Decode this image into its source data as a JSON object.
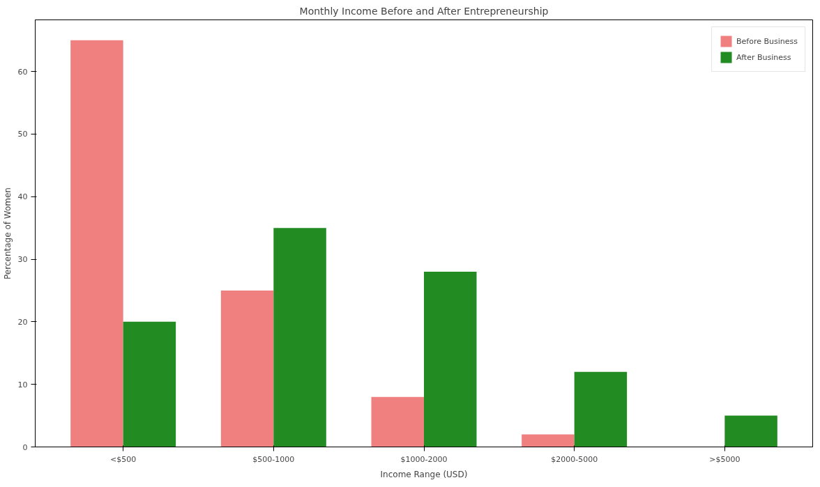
{
  "chart_data": {
    "type": "bar",
    "title": "Monthly Income Before and After Entrepreneurship",
    "xlabel": "Income Range (USD)",
    "ylabel": "Percentage of Women",
    "categories": [
      "<$500",
      "$500-1000",
      "$1000-2000",
      "$2000-5000",
      ">$5000"
    ],
    "series": [
      {
        "name": "Before Business",
        "color": "#f08080",
        "values": [
          65,
          25,
          8,
          2,
          0
        ]
      },
      {
        "name": "After Business",
        "color": "#228b22",
        "values": [
          20,
          35,
          28,
          12,
          5
        ]
      }
    ],
    "ylim": [
      0,
      68.25
    ],
    "yticks": [
      0,
      10,
      20,
      30,
      40,
      50,
      60
    ],
    "grid": false,
    "legend": "top right"
  }
}
